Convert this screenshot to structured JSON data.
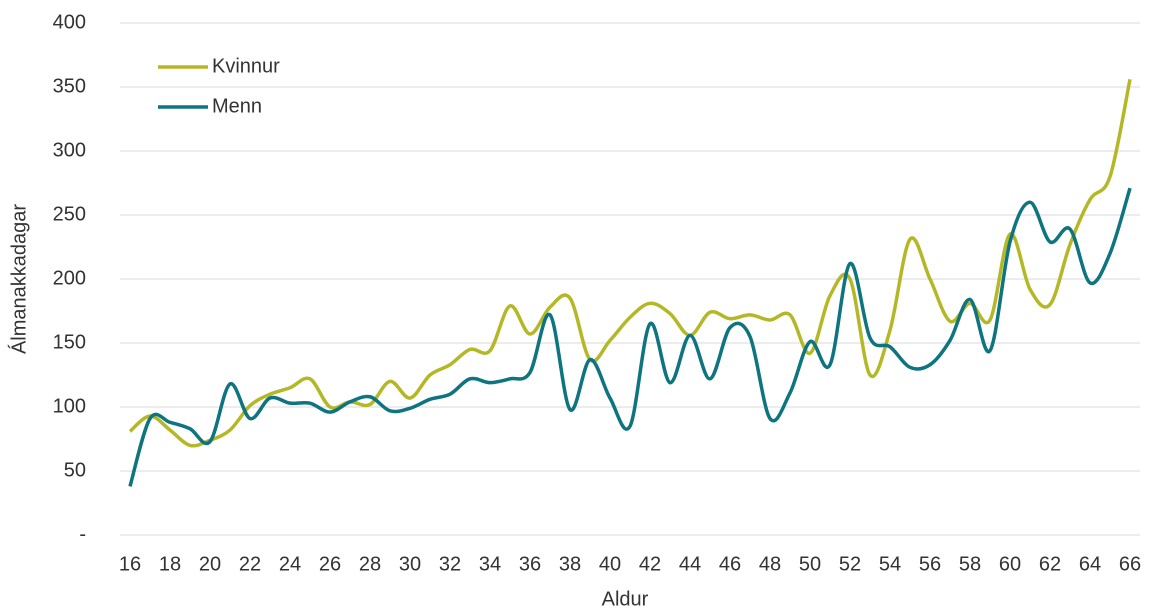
{
  "chart_data": {
    "type": "line",
    "y_label": "Álmanakkadagar",
    "x_label": "Aldur",
    "categories": [
      "16",
      null,
      "18",
      null,
      "20",
      null,
      "22",
      null,
      "24",
      null,
      "26",
      null,
      "28",
      null,
      "30",
      null,
      "32",
      null,
      "34",
      null,
      "36",
      null,
      "38",
      null,
      "40",
      null,
      "42",
      null,
      "44",
      null,
      "46",
      null,
      "48",
      null,
      "50",
      null,
      "52",
      null,
      "54",
      null,
      "56",
      null,
      "58",
      null,
      "60",
      null,
      "62",
      null,
      "64",
      null,
      "66"
    ],
    "series": [
      {
        "name": "Kvinnur",
        "color": "#b5b826",
        "values": [
          81,
          93,
          82,
          70,
          74,
          82,
          101,
          110,
          115,
          122,
          100,
          104,
          102,
          120,
          107,
          125,
          133,
          145,
          144,
          179,
          157,
          178,
          185,
          137,
          152,
          170,
          181,
          173,
          156,
          174,
          169,
          172,
          168,
          172,
          142,
          187,
          200,
          125,
          160,
          231,
          200,
          167,
          181,
          168,
          235,
          192,
          180,
          227,
          262,
          280,
          356
        ]
      },
      {
        "name": "Menn",
        "color": "#0e7480",
        "values": [
          38,
          91,
          88,
          83,
          73,
          118,
          91,
          107,
          103,
          103,
          96,
          104,
          108,
          97,
          99,
          106,
          110,
          122,
          119,
          122,
          127,
          172,
          98,
          137,
          107,
          85,
          165,
          119,
          156,
          122,
          162,
          155,
          91,
          111,
          151,
          133,
          212,
          154,
          147,
          131,
          133,
          152,
          184,
          144,
          229,
          260,
          229,
          239,
          197,
          220,
          271
        ]
      }
    ],
    "ylim": [
      0,
      400
    ],
    "yticks": [
      {
        "value": 0,
        "label": "-"
      },
      50,
      100,
      150,
      200,
      250,
      300,
      350,
      400
    ],
    "grid": true,
    "legend": "top-left"
  }
}
